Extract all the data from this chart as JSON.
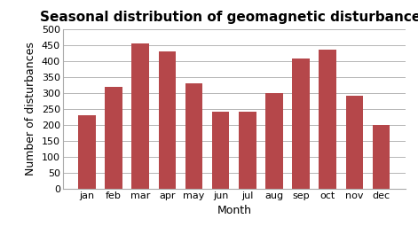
{
  "title": "Seasonal distribution of geomagnetic disturbances",
  "xlabel": "Month",
  "ylabel": "Number of disturbances",
  "categories": [
    "jan",
    "feb",
    "mar",
    "apr",
    "may",
    "jun",
    "jul",
    "aug",
    "sep",
    "oct",
    "nov",
    "dec"
  ],
  "values": [
    230,
    320,
    455,
    430,
    330,
    240,
    240,
    300,
    407,
    435,
    290,
    200
  ],
  "bar_color": "#b5474a",
  "ylim": [
    0,
    500
  ],
  "yticks": [
    0,
    50,
    100,
    150,
    200,
    250,
    300,
    350,
    400,
    450,
    500
  ],
  "title_fontsize": 11,
  "axis_label_fontsize": 9,
  "tick_fontsize": 8,
  "background_color": "#ffffff",
  "grid_color": "#aaaaaa"
}
